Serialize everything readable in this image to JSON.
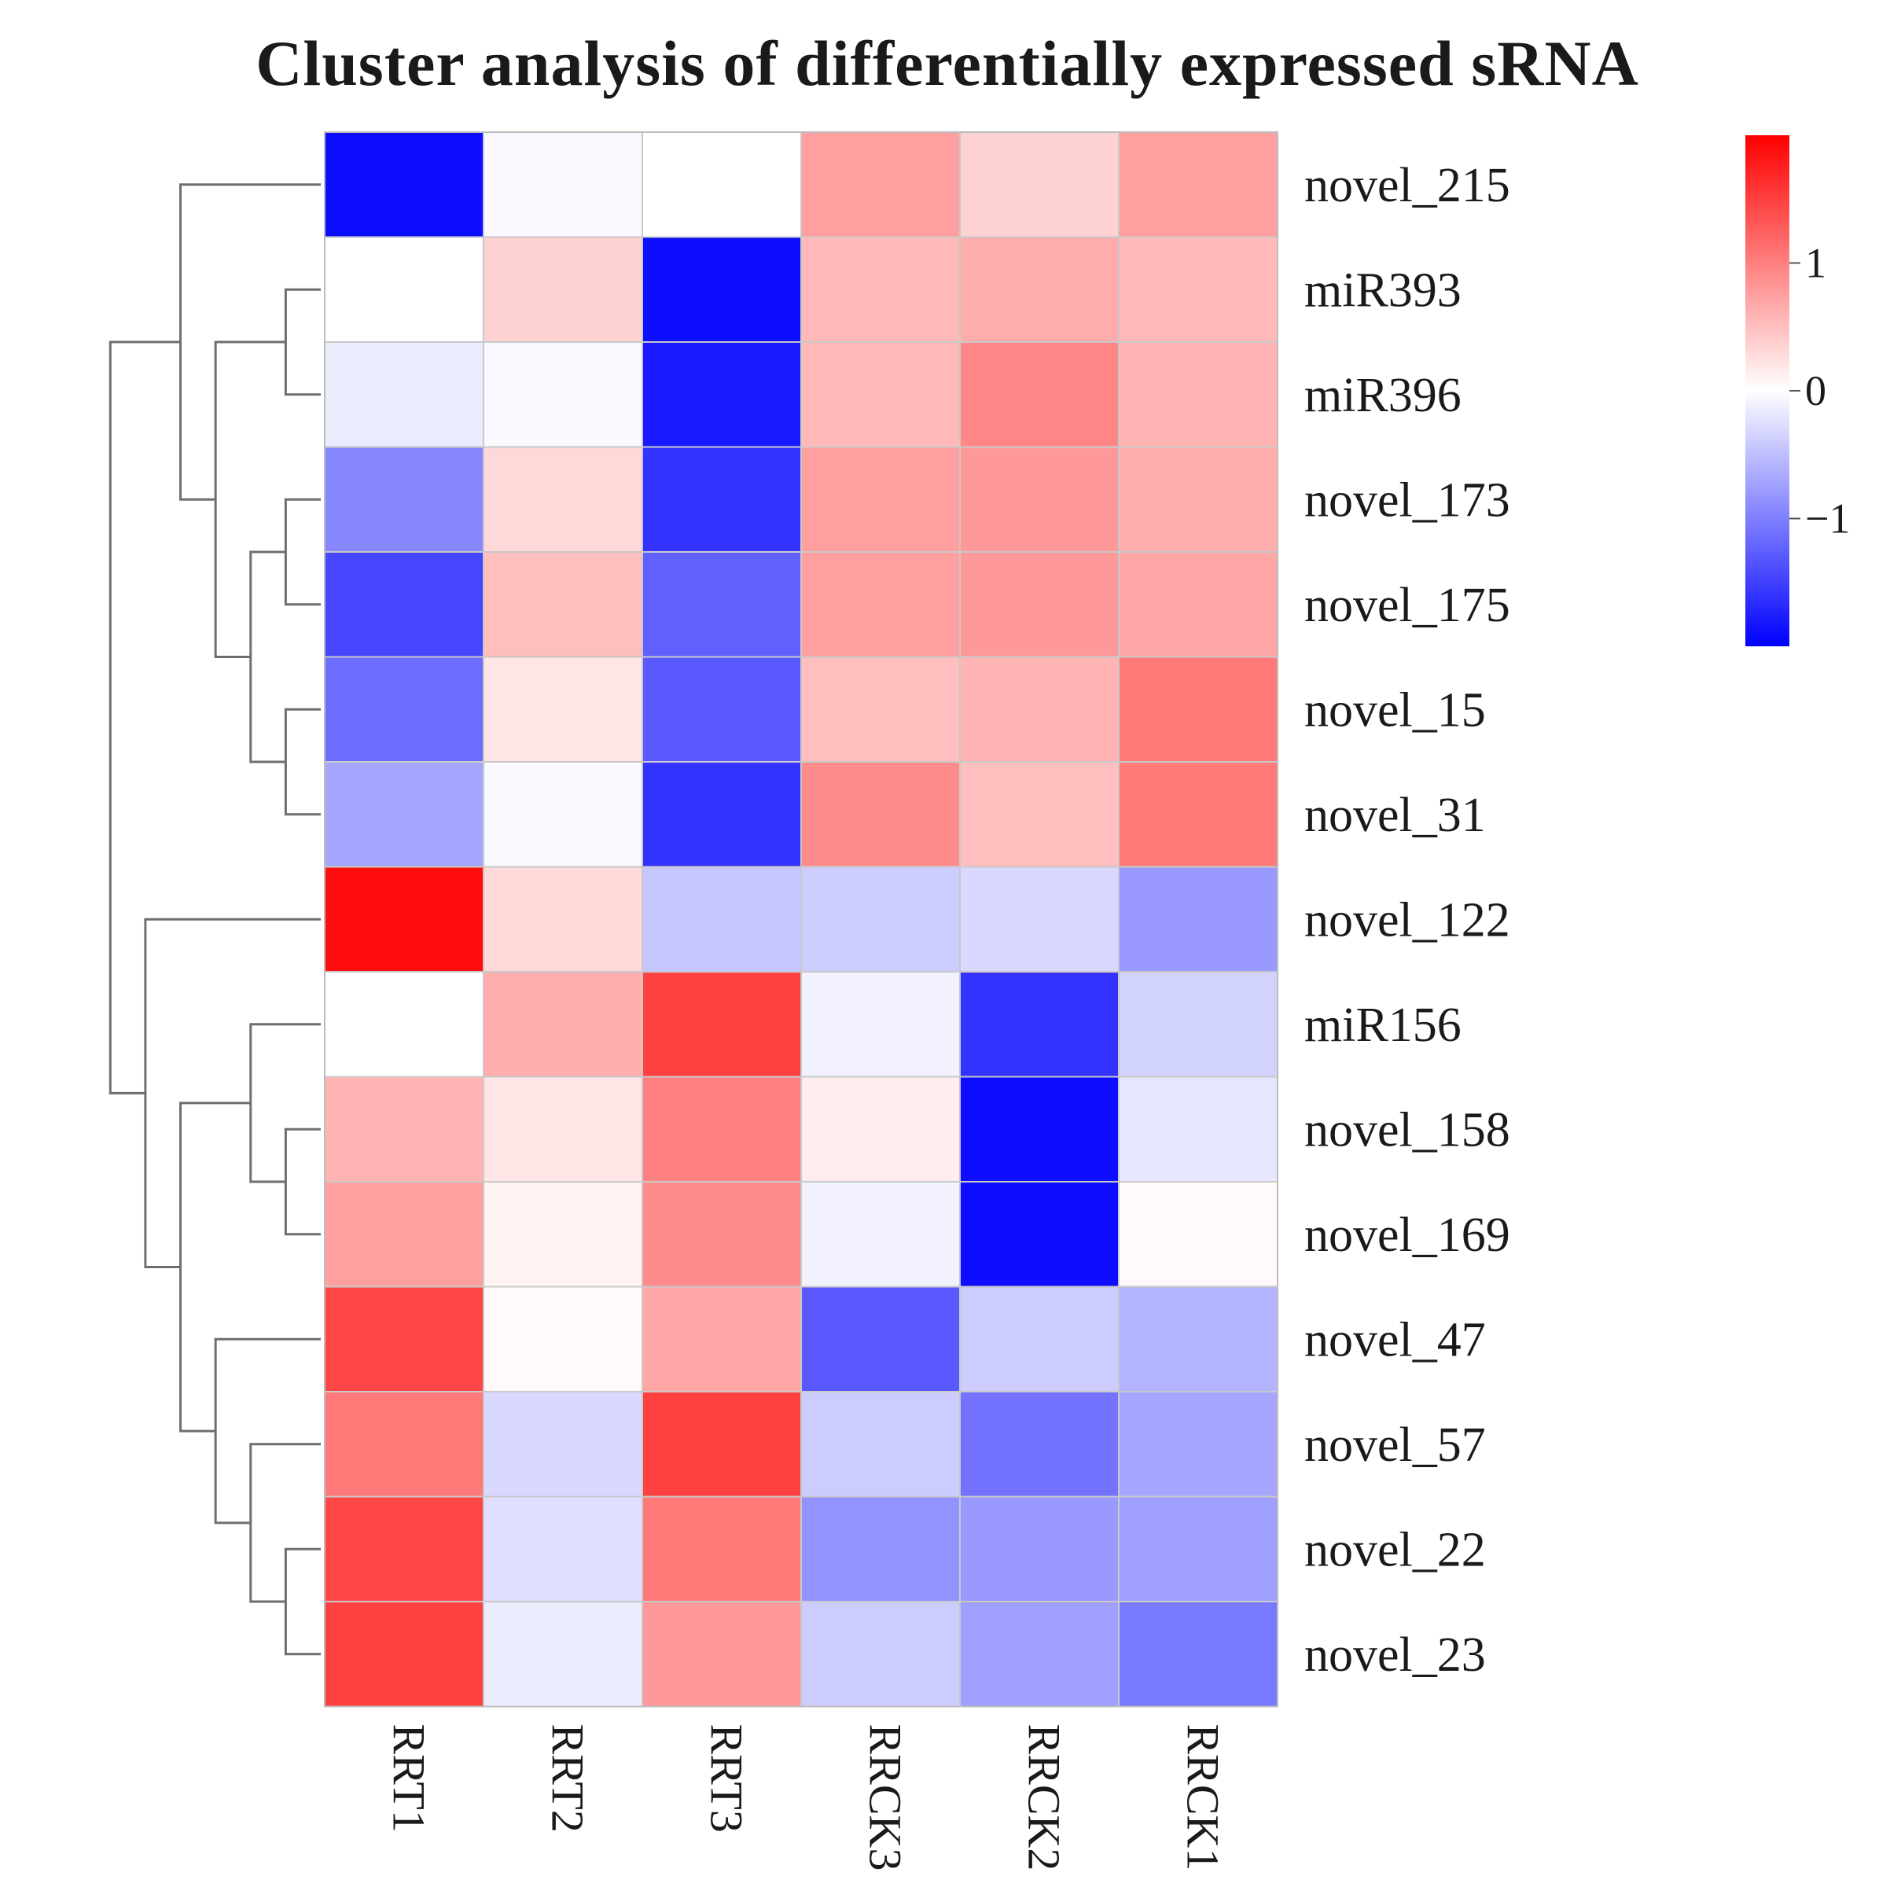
{
  "chart_data": {
    "type": "heatmap",
    "title": "Cluster analysis of differentially expressed sRNA",
    "rows": [
      "novel_215",
      "miR393",
      "miR396",
      "novel_173",
      "novel_175",
      "novel_15",
      "novel_31",
      "novel_122",
      "miR156",
      "novel_158",
      "novel_169",
      "novel_47",
      "novel_57",
      "novel_22",
      "novel_23"
    ],
    "columns": [
      "RRT1",
      "RRT2",
      "RRT3",
      "RRCK3",
      "RRCK2",
      "RRCK1"
    ],
    "values": [
      [
        -1.9,
        -0.05,
        0.0,
        0.75,
        0.35,
        0.75
      ],
      [
        0.0,
        0.35,
        -1.9,
        0.55,
        0.65,
        0.55
      ],
      [
        -0.15,
        -0.05,
        -1.8,
        0.55,
        0.95,
        0.6
      ],
      [
        -0.95,
        0.3,
        -1.6,
        0.75,
        0.8,
        0.65
      ],
      [
        -1.45,
        0.5,
        -1.25,
        0.75,
        0.8,
        0.7
      ],
      [
        -1.15,
        0.2,
        -1.3,
        0.5,
        0.6,
        1.05
      ],
      [
        -0.7,
        -0.05,
        -1.6,
        0.9,
        0.5,
        1.05
      ],
      [
        1.9,
        0.3,
        -0.45,
        -0.4,
        -0.3,
        -0.8
      ],
      [
        0.0,
        0.65,
        1.5,
        -0.1,
        -1.6,
        -0.35
      ],
      [
        0.6,
        0.2,
        1.0,
        0.15,
        -1.9,
        -0.2
      ],
      [
        0.75,
        0.1,
        0.9,
        -0.1,
        -1.9,
        0.05
      ],
      [
        1.45,
        0.05,
        0.7,
        -1.3,
        -0.4,
        -0.6
      ],
      [
        1.05,
        -0.3,
        1.5,
        -0.4,
        -1.1,
        -0.7
      ],
      [
        1.45,
        -0.25,
        1.05,
        -0.85,
        -0.8,
        -0.75
      ],
      [
        1.5,
        -0.15,
        0.8,
        -0.4,
        -0.75,
        -1.05
      ]
    ],
    "color_scale": {
      "min": -2,
      "max": 2,
      "low": "#0000ff",
      "mid": "#ffffff",
      "high": "#ff0000"
    },
    "colorbar": {
      "ticks": [
        1,
        0,
        -1
      ],
      "tick_labels": [
        "1",
        "0",
        "−1"
      ]
    },
    "row_dendrogram": [
      {
        "a": 1,
        "b": 2
      },
      {
        "a": 5,
        "b": 6
      },
      {
        "a": 3,
        "b": 4
      },
      {
        "a": 17,
        "b": 16
      },
      {
        "a": 15,
        "b": 18
      },
      {
        "a": 0,
        "b": 19
      },
      {
        "a": 9,
        "b": 10
      },
      {
        "a": 13,
        "b": 14
      },
      {
        "a": 12,
        "b": 22
      },
      {
        "a": 11,
        "b": 23
      },
      {
        "a": 8,
        "b": 21
      },
      {
        "a": 25,
        "b": 24
      },
      {
        "a": 7,
        "b": 26
      },
      {
        "a": 20,
        "b": 27
      }
    ]
  }
}
